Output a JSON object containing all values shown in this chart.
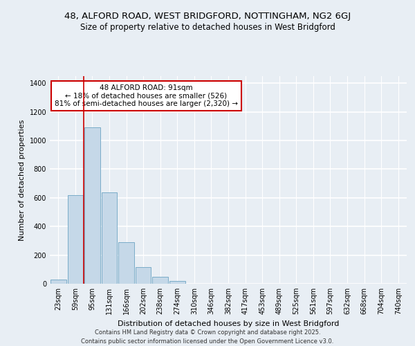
{
  "title_line1": "48, ALFORD ROAD, WEST BRIDGFORD, NOTTINGHAM, NG2 6GJ",
  "title_line2": "Size of property relative to detached houses in West Bridgford",
  "xlabel": "Distribution of detached houses by size in West Bridgford",
  "ylabel": "Number of detached properties",
  "categories": [
    "23sqm",
    "59sqm",
    "95sqm",
    "131sqm",
    "166sqm",
    "202sqm",
    "238sqm",
    "274sqm",
    "310sqm",
    "346sqm",
    "382sqm",
    "417sqm",
    "453sqm",
    "489sqm",
    "525sqm",
    "561sqm",
    "597sqm",
    "632sqm",
    "668sqm",
    "704sqm",
    "740sqm"
  ],
  "values": [
    30,
    620,
    1090,
    640,
    290,
    115,
    50,
    20,
    0,
    0,
    0,
    0,
    0,
    0,
    0,
    0,
    0,
    0,
    0,
    0,
    0
  ],
  "bar_color": "#c5d8e8",
  "bar_edge_color": "#7aacc8",
  "vline_color": "#cc0000",
  "vline_xindex": 2,
  "annotation_text": "48 ALFORD ROAD: 91sqm\n← 18% of detached houses are smaller (526)\n81% of semi-detached houses are larger (2,320) →",
  "annotation_box_color": "#ffffff",
  "annotation_box_edge_color": "#cc0000",
  "ylim": [
    0,
    1450
  ],
  "yticks": [
    0,
    200,
    400,
    600,
    800,
    1000,
    1200,
    1400
  ],
  "background_color": "#e8eef4",
  "grid_color": "#ffffff",
  "footer_line1": "Contains HM Land Registry data © Crown copyright and database right 2025.",
  "footer_line2": "Contains public sector information licensed under the Open Government Licence v3.0.",
  "title_fontsize": 9.5,
  "subtitle_fontsize": 8.5,
  "axis_label_fontsize": 8,
  "tick_fontsize": 7,
  "annotation_fontsize": 7.5,
  "footer_fontsize": 6
}
